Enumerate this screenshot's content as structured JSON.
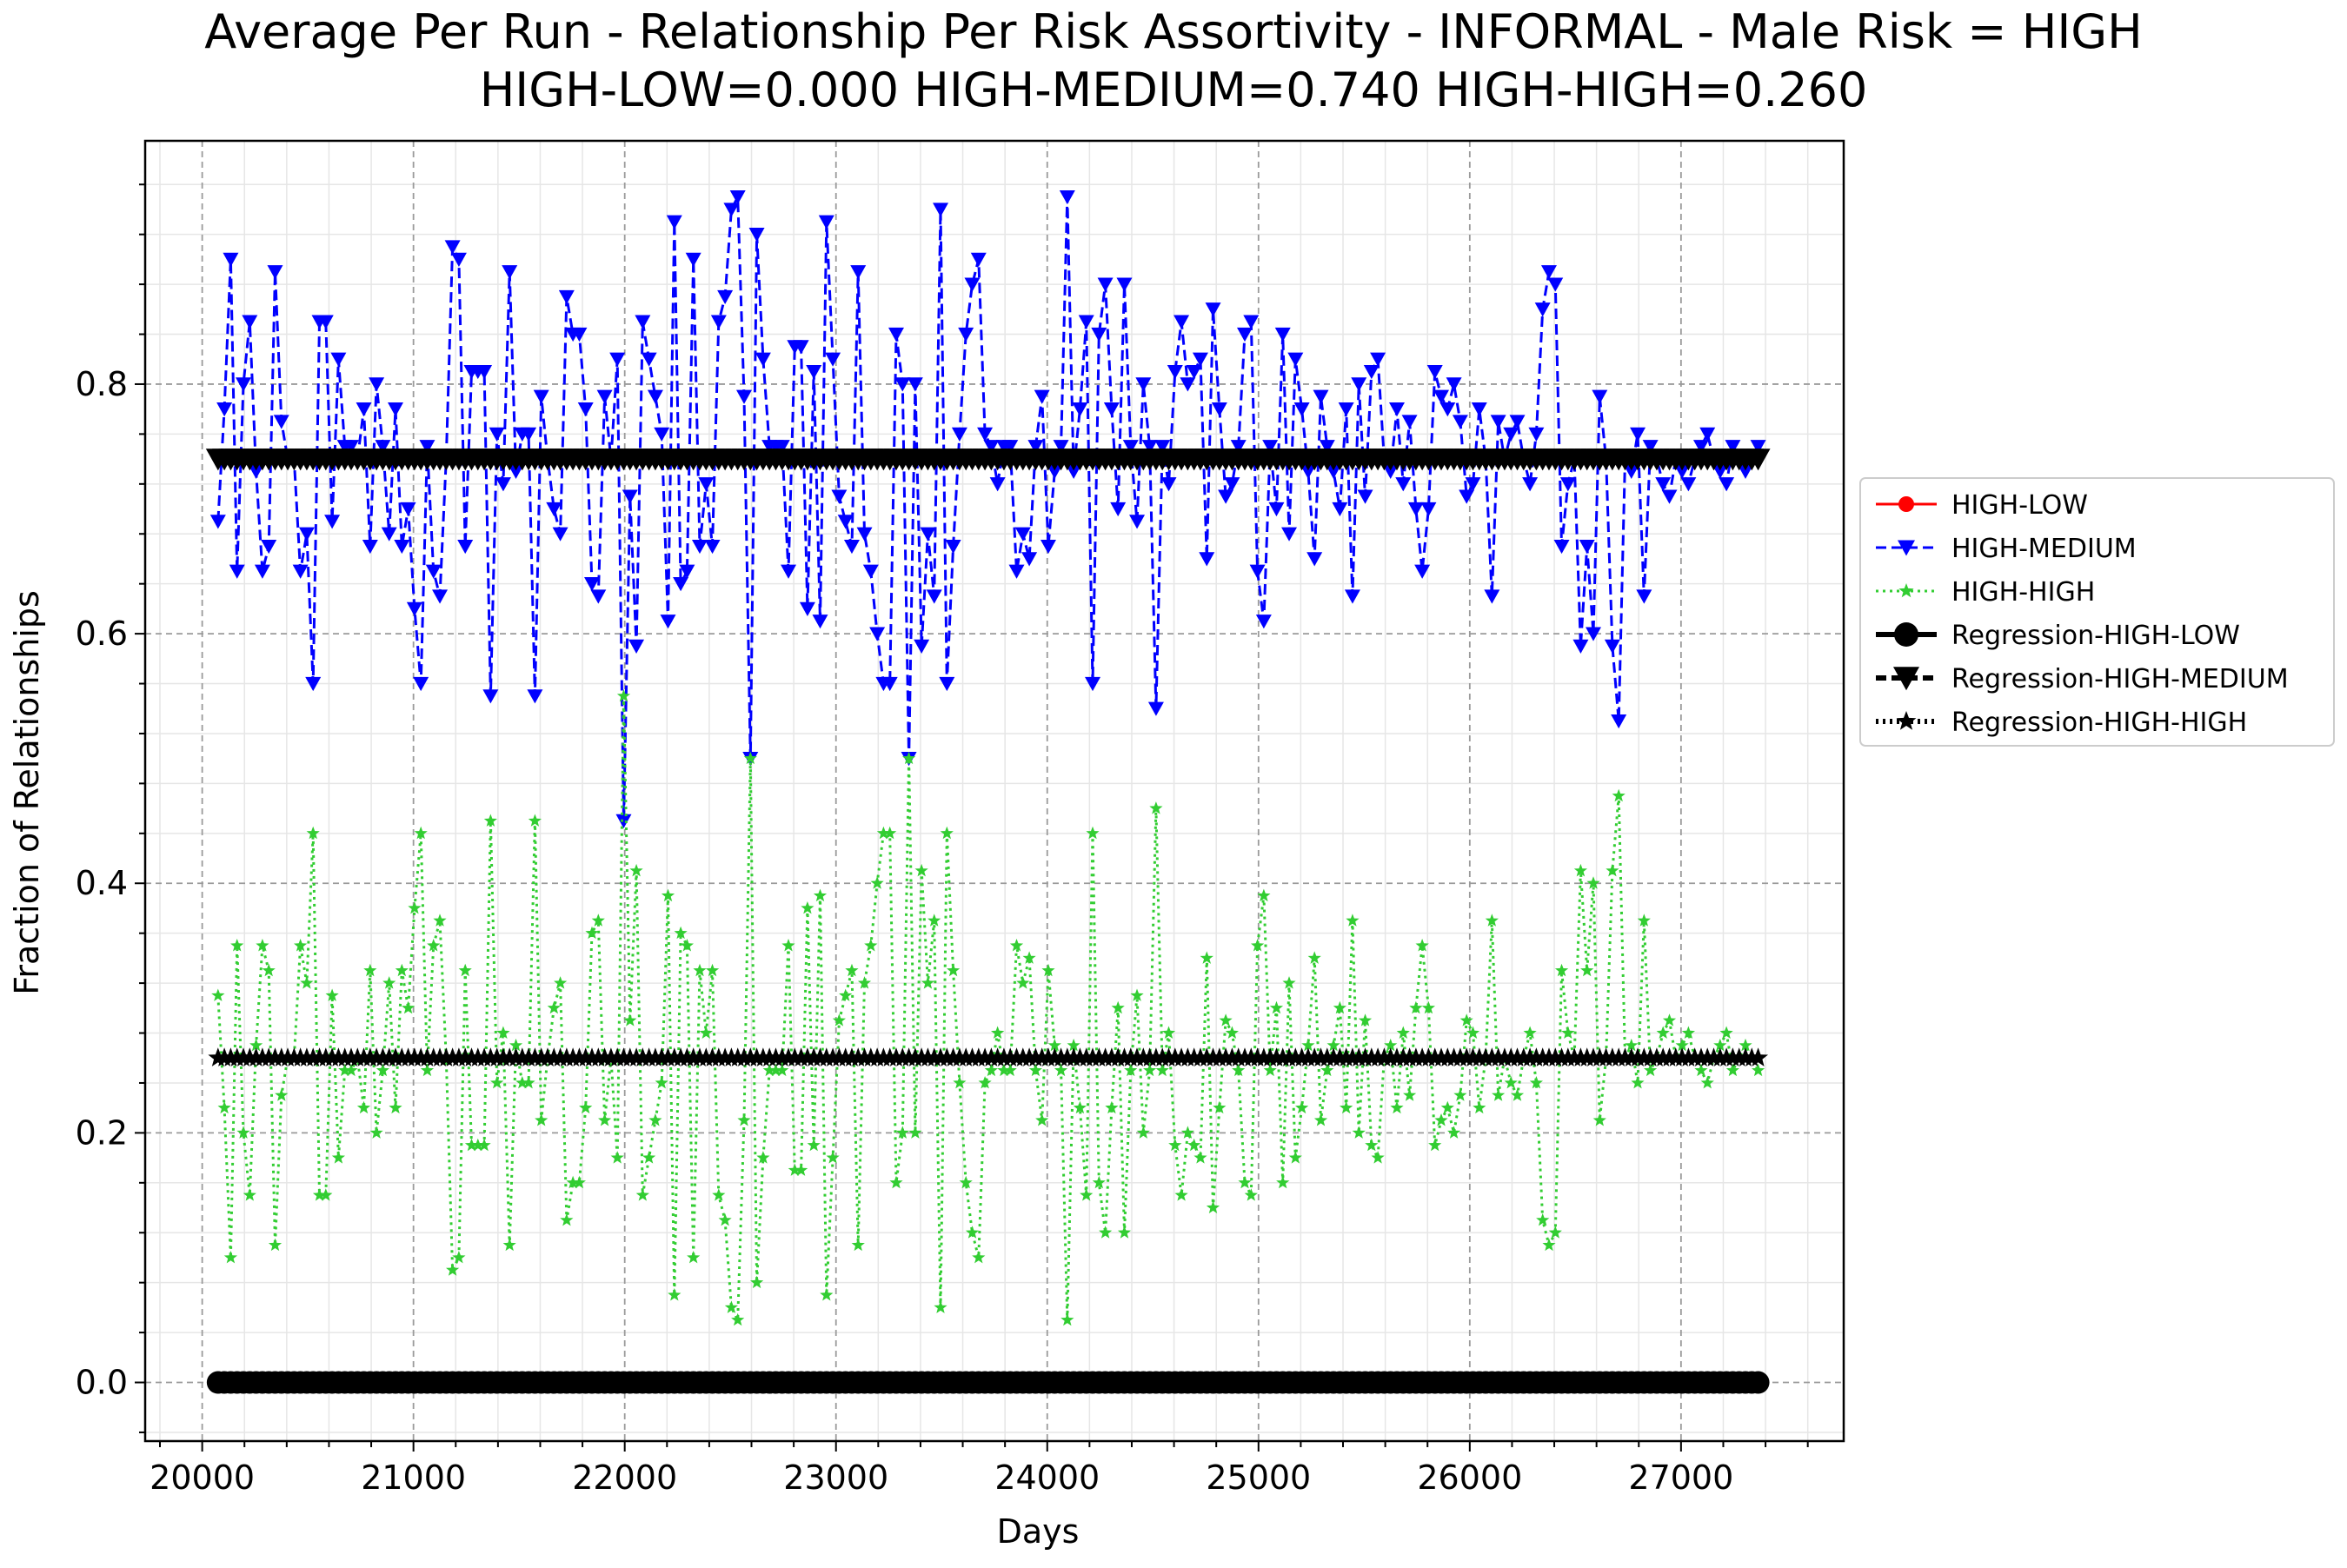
{
  "chart_data": {
    "type": "line",
    "title": "Average Per Run - Relationship Per Risk Assortivity - INFORMAL - Male Risk = HIGH",
    "subtitle": "HIGH-LOW=0.000 HIGH-MEDIUM=0.740 HIGH-HIGH=0.260",
    "xlabel": "Days",
    "ylabel": "Fraction of Relationships",
    "xlim": [
      19730,
      27770
    ],
    "ylim": [
      -0.047,
      0.995
    ],
    "x_ticks": [
      20000,
      21000,
      22000,
      23000,
      24000,
      25000,
      26000,
      27000
    ],
    "x_tick_labels": [
      "20000",
      "21000",
      "22000",
      "23000",
      "24000",
      "25000",
      "26000",
      "27000"
    ],
    "y_ticks": [
      0.0,
      0.2,
      0.4,
      0.6,
      0.8
    ],
    "y_tick_labels": [
      "0.0",
      "0.2",
      "0.4",
      "0.6",
      "0.8"
    ],
    "grid": true,
    "legend_position": "center-right outside",
    "x": {
      "start": 20075,
      "step": 30,
      "count": 244
    },
    "series": [
      {
        "name": "HIGH-LOW",
        "color": "#ff0000",
        "style": "solid",
        "marker": "circle",
        "values_constant": 0.0
      },
      {
        "name": "HIGH-MEDIUM",
        "color": "#0000ff",
        "style": "dashed",
        "marker": "triangle-down",
        "values_description": "fluctuates around 0.74",
        "values": [
          0.69,
          0.78,
          0.9,
          0.65,
          0.8,
          0.85,
          0.73,
          0.65,
          0.67,
          0.89,
          0.77,
          0.74,
          0.74,
          0.65,
          0.68,
          0.56,
          0.85,
          0.85,
          0.69,
          0.82,
          0.75,
          0.75,
          0.74,
          0.78,
          0.67,
          0.8,
          0.75,
          0.68,
          0.78,
          0.67,
          0.7,
          0.62,
          0.56,
          0.75,
          0.65,
          0.63,
          0.74,
          0.91,
          0.9,
          0.67,
          0.81,
          0.81,
          0.81,
          0.55,
          0.76,
          0.72,
          0.89,
          0.73,
          0.76,
          0.76,
          0.55,
          0.79,
          0.74,
          0.7,
          0.68,
          0.87,
          0.84,
          0.84,
          0.78,
          0.64,
          0.63,
          0.79,
          0.74,
          0.82,
          0.45,
          0.71,
          0.59,
          0.85,
          0.82,
          0.79,
          0.76,
          0.61,
          0.93,
          0.64,
          0.65,
          0.9,
          0.67,
          0.72,
          0.67,
          0.85,
          0.87,
          0.94,
          0.95,
          0.79,
          0.5,
          0.92,
          0.82,
          0.75,
          0.75,
          0.75,
          0.65,
          0.83,
          0.83,
          0.62,
          0.81,
          0.61,
          0.93,
          0.82,
          0.71,
          0.69,
          0.67,
          0.89,
          0.68,
          0.65,
          0.6,
          0.56,
          0.56,
          0.84,
          0.8,
          0.5,
          0.8,
          0.59,
          0.68,
          0.63,
          0.94,
          0.56,
          0.67,
          0.76,
          0.84,
          0.88,
          0.9,
          0.76,
          0.75,
          0.72,
          0.75,
          0.75,
          0.65,
          0.68,
          0.66,
          0.75,
          0.79,
          0.67,
          0.73,
          0.75,
          0.95,
          0.73,
          0.78,
          0.85,
          0.56,
          0.84,
          0.88,
          0.78,
          0.7,
          0.88,
          0.75,
          0.69,
          0.8,
          0.75,
          0.54,
          0.75,
          0.72,
          0.81,
          0.85,
          0.8,
          0.81,
          0.82,
          0.66,
          0.86,
          0.78,
          0.71,
          0.72,
          0.75,
          0.84,
          0.85,
          0.65,
          0.61,
          0.75,
          0.7,
          0.84,
          0.68,
          0.82,
          0.78,
          0.73,
          0.66,
          0.79,
          0.75,
          0.73,
          0.7,
          0.78,
          0.63,
          0.8,
          0.71,
          0.81,
          0.82,
          0.74,
          0.73,
          0.78,
          0.72,
          0.77,
          0.7,
          0.65,
          0.7,
          0.81,
          0.79,
          0.78,
          0.8,
          0.77,
          0.71,
          0.72,
          0.78,
          0.74,
          0.63,
          0.77,
          0.74,
          0.76,
          0.77,
          0.74,
          0.72,
          0.76,
          0.86,
          0.89,
          0.88,
          0.67,
          0.72,
          0.74,
          0.59,
          0.67,
          0.6,
          0.79,
          0.74,
          0.59,
          0.53,
          0.74,
          0.73,
          0.76,
          0.63,
          0.75,
          0.74,
          0.72,
          0.71,
          0.74,
          0.73,
          0.72,
          0.74,
          0.75,
          0.76,
          0.74,
          0.73,
          0.72,
          0.75,
          0.74,
          0.73,
          0.74,
          0.75,
          0.74,
          0.73
        ]
      },
      {
        "name": "HIGH-HIGH",
        "color": "#32cd32",
        "style": "dotted",
        "marker": "star",
        "values_description": "fluctuates around 0.26",
        "values": [
          0.31,
          0.22,
          0.1,
          0.35,
          0.2,
          0.15,
          0.27,
          0.35,
          0.33,
          0.11,
          0.23,
          0.26,
          0.26,
          0.35,
          0.32,
          0.44,
          0.15,
          0.15,
          0.31,
          0.18,
          0.25,
          0.25,
          0.26,
          0.22,
          0.33,
          0.2,
          0.25,
          0.32,
          0.22,
          0.33,
          0.3,
          0.38,
          0.44,
          0.25,
          0.35,
          0.37,
          0.26,
          0.09,
          0.1,
          0.33,
          0.19,
          0.19,
          0.19,
          0.45,
          0.24,
          0.28,
          0.11,
          0.27,
          0.24,
          0.24,
          0.45,
          0.21,
          0.26,
          0.3,
          0.32,
          0.13,
          0.16,
          0.16,
          0.22,
          0.36,
          0.37,
          0.21,
          0.26,
          0.18,
          0.55,
          0.29,
          0.41,
          0.15,
          0.18,
          0.21,
          0.24,
          0.39,
          0.07,
          0.36,
          0.35,
          0.1,
          0.33,
          0.28,
          0.33,
          0.15,
          0.13,
          0.06,
          0.05,
          0.21,
          0.5,
          0.08,
          0.18,
          0.25,
          0.25,
          0.25,
          0.35,
          0.17,
          0.17,
          0.38,
          0.19,
          0.39,
          0.07,
          0.18,
          0.29,
          0.31,
          0.33,
          0.11,
          0.32,
          0.35,
          0.4,
          0.44,
          0.44,
          0.16,
          0.2,
          0.5,
          0.2,
          0.41,
          0.32,
          0.37,
          0.06,
          0.44,
          0.33,
          0.24,
          0.16,
          0.12,
          0.1,
          0.24,
          0.25,
          0.28,
          0.25,
          0.25,
          0.35,
          0.32,
          0.34,
          0.25,
          0.21,
          0.33,
          0.27,
          0.25,
          0.05,
          0.27,
          0.22,
          0.15,
          0.44,
          0.16,
          0.12,
          0.22,
          0.3,
          0.12,
          0.25,
          0.31,
          0.2,
          0.25,
          0.46,
          0.25,
          0.28,
          0.19,
          0.15,
          0.2,
          0.19,
          0.18,
          0.34,
          0.14,
          0.22,
          0.29,
          0.28,
          0.25,
          0.16,
          0.15,
          0.35,
          0.39,
          0.25,
          0.3,
          0.16,
          0.32,
          0.18,
          0.22,
          0.27,
          0.34,
          0.21,
          0.25,
          0.27,
          0.3,
          0.22,
          0.37,
          0.2,
          0.29,
          0.19,
          0.18,
          0.26,
          0.27,
          0.22,
          0.28,
          0.23,
          0.3,
          0.35,
          0.3,
          0.19,
          0.21,
          0.22,
          0.2,
          0.23,
          0.29,
          0.28,
          0.22,
          0.26,
          0.37,
          0.23,
          0.26,
          0.24,
          0.23,
          0.26,
          0.28,
          0.24,
          0.13,
          0.11,
          0.12,
          0.33,
          0.28,
          0.26,
          0.41,
          0.33,
          0.4,
          0.21,
          0.26,
          0.41,
          0.47,
          0.26,
          0.27,
          0.24,
          0.37,
          0.25,
          0.26,
          0.28,
          0.29,
          0.26,
          0.27,
          0.28,
          0.26,
          0.25,
          0.24,
          0.26,
          0.27,
          0.28,
          0.25,
          0.26,
          0.27,
          0.26,
          0.25,
          0.26,
          0.27
        ]
      },
      {
        "name": "Regression-HIGH-LOW",
        "color": "#000000",
        "style": "solid",
        "marker": "circle",
        "values_constant": 0.0
      },
      {
        "name": "Regression-HIGH-MEDIUM",
        "color": "#000000",
        "style": "dashed",
        "marker": "triangle-down",
        "values_constant": 0.74
      },
      {
        "name": "Regression-HIGH-HIGH",
        "color": "#000000",
        "style": "dotted",
        "marker": "star",
        "values_constant": 0.26
      }
    ]
  }
}
